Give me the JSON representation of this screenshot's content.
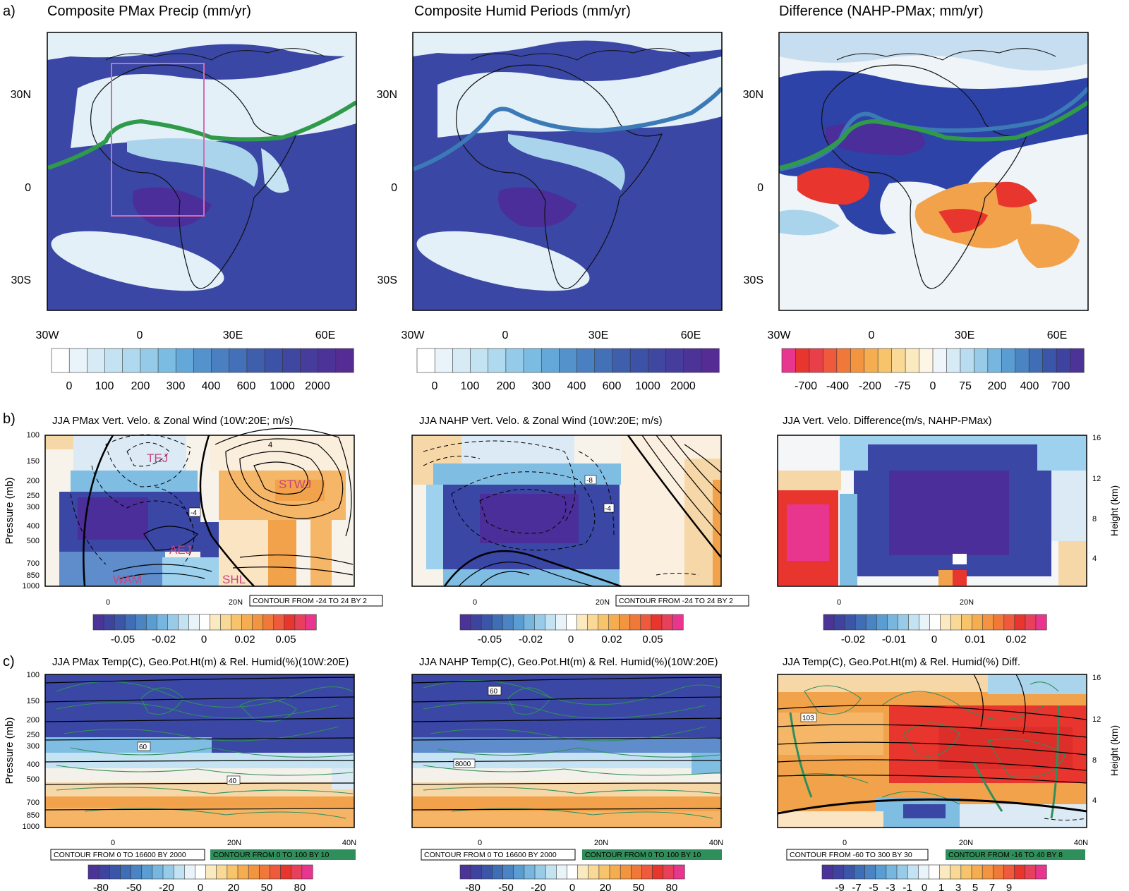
{
  "row_labels": [
    "a)",
    "b)",
    "c)"
  ],
  "row_a": {
    "titles": [
      "Composite PMax Precip (mm/yr)",
      "Composite Humid Periods (mm/yr)",
      "Difference (NAHP-PMax; mm/yr)"
    ],
    "lon_ticks": [
      "30W",
      "0",
      "30E",
      "60E"
    ],
    "lat_ticks": [
      "30N",
      "0",
      "30S"
    ],
    "colorbar_precip": [
      "0",
      "100",
      "200",
      "300",
      "400",
      "600",
      "1000",
      "2000"
    ],
    "colorbar_diff": [
      "-700",
      "-400",
      "-200",
      "-75",
      "0",
      "75",
      "200",
      "400",
      "700"
    ]
  },
  "row_b": {
    "titles": [
      "JJA PMax Vert. Velo. & Zonal Wind (10W:20E; m/s)",
      "JJA NAHP Vert. Velo. & Zonal Wind (10W:20E; m/s)",
      "JJA Vert. Velo. Difference(m/s, NAHP-PMax)"
    ],
    "labels_left": [
      "TEJ",
      "STWJ",
      "AEJ",
      "WAM",
      "SHL"
    ],
    "contour_note": "CONTOUR FROM -24 TO 24 BY 2",
    "contour_labels_b1": [
      "4",
      "-4"
    ],
    "contour_labels_b2": [
      "-8",
      "-4"
    ],
    "colorbar_main": [
      "-0.05",
      "-0.02",
      "0",
      "0.02",
      "0.05"
    ],
    "colorbar_diff": [
      "-0.02",
      "-0.01",
      "0",
      "0.01",
      "0.02"
    ]
  },
  "row_c": {
    "titles": [
      "JJA PMax Temp(C), Geo.Pot.Ht(m) & Rel. Humid(%)(10W:20E)",
      "JJA NAHP Temp(C), Geo.Pot.Ht(m) & Rel. Humid(%)(10W:20E)",
      "JJA Temp(C), Geo.Pot.Ht(m) & Rel. Humid(%) Diff."
    ],
    "contour_black": [
      "CONTOUR FROM 0 TO 16600 BY 2000",
      "CONTOUR FROM 0 TO 16600 BY 2000",
      "CONTOUR FROM -60 TO 300 BY 30"
    ],
    "contour_green": [
      "CONTOUR FROM 0 TO 100 BY 10",
      "CONTOUR FROM 0 TO 100 BY 10",
      "CONTOUR FROM -16 TO 40 BY 8"
    ],
    "contour_labels_c1": [
      "60",
      "40"
    ],
    "contour_labels_c2": [
      "60",
      "8000"
    ],
    "contour_labels_c3": [
      "103"
    ],
    "colorbar_main": [
      "-80",
      "-50",
      "-20",
      "0",
      "20",
      "50",
      "80"
    ],
    "colorbar_diff": [
      "-9",
      "-7",
      "-5",
      "-3",
      "-1",
      "0",
      "1",
      "3",
      "5",
      "7",
      "9"
    ]
  },
  "pressure_axis": {
    "label": "Pressure (mb)",
    "ticks": [
      "100",
      "150",
      "200",
      "250",
      "300",
      "400",
      "500",
      "700",
      "850",
      "1000"
    ]
  },
  "height_axis": {
    "label": "Height (km)",
    "ticks": [
      "16",
      "12",
      "8",
      "4"
    ]
  },
  "lat_axis_b": [
    "0",
    "20N"
  ],
  "lat_axis_c": [
    "0",
    "20N",
    "40N"
  ],
  "colors": {
    "ocean": "#3a47a5",
    "deep": "#4b2e9a",
    "land_dry": "#e3f0f8",
    "mid": "#73b6dd",
    "green_line": "#2f9a4a",
    "blue_line": "#3b7ab6",
    "box": "#d46bb0",
    "warm": "#f2a24a",
    "hot": "#e8352e",
    "pink": "#e8368f",
    "jet_text": "#c8457e"
  },
  "chart_data": [
    {
      "type": "heatmap",
      "title": "Composite PMax Precip (mm/yr)",
      "x_ticks": [
        "30W",
        "0",
        "30E",
        "60E"
      ],
      "y_ticks": [
        "30N",
        "0",
        "30S"
      ],
      "colorbar": [
        0,
        100,
        200,
        300,
        400,
        600,
        1000,
        2000
      ]
    },
    {
      "type": "heatmap",
      "title": "Composite Humid Periods (mm/yr)",
      "x_ticks": [
        "30W",
        "0",
        "30E",
        "60E"
      ],
      "y_ticks": [
        "30N",
        "0",
        "30S"
      ],
      "colorbar": [
        0,
        100,
        200,
        300,
        400,
        600,
        1000,
        2000
      ]
    },
    {
      "type": "heatmap",
      "title": "Difference (NAHP-PMax; mm/yr)",
      "x_ticks": [
        "30W",
        "0",
        "30E",
        "60E"
      ],
      "y_ticks": [
        "30N",
        "0",
        "30S"
      ],
      "colorbar": [
        -700,
        -400,
        -200,
        -75,
        0,
        75,
        200,
        400,
        700
      ]
    },
    {
      "type": "heatmap",
      "title": "JJA PMax Vert. Velo. & Zonal Wind (10W:20E; m/s)",
      "ylabel": "Pressure (mb)",
      "colorbar": [
        -0.05,
        -0.02,
        0,
        0.02,
        0.05
      ]
    },
    {
      "type": "heatmap",
      "title": "JJA NAHP Vert. Velo. & Zonal Wind (10W:20E; m/s)",
      "colorbar": [
        -0.05,
        -0.02,
        0,
        0.02,
        0.05
      ]
    },
    {
      "type": "heatmap",
      "title": "JJA Vert. Velo. Difference(m/s, NAHP-PMax)",
      "ylabel": "Height (km)",
      "colorbar": [
        -0.02,
        -0.01,
        0,
        0.01,
        0.02
      ]
    },
    {
      "type": "heatmap",
      "title": "JJA PMax Temp(C), Geo.Pot.Ht(m) & Rel. Humid(%)(10W:20E)",
      "ylabel": "Pressure (mb)",
      "colorbar": [
        -80,
        -50,
        -20,
        0,
        20,
        50,
        80
      ]
    },
    {
      "type": "heatmap",
      "title": "JJA NAHP Temp(C), Geo.Pot.Ht(m) & Rel. Humid(%)(10W:20E)",
      "colorbar": [
        -80,
        -50,
        -20,
        0,
        20,
        50,
        80
      ]
    },
    {
      "type": "heatmap",
      "title": "JJA Temp(C), Geo.Pot.Ht(m) & Rel. Humid(%) Diff.",
      "ylabel": "Height (km)",
      "colorbar": [
        -9,
        -7,
        -5,
        -3,
        -1,
        0,
        1,
        3,
        5,
        7,
        9
      ]
    }
  ]
}
